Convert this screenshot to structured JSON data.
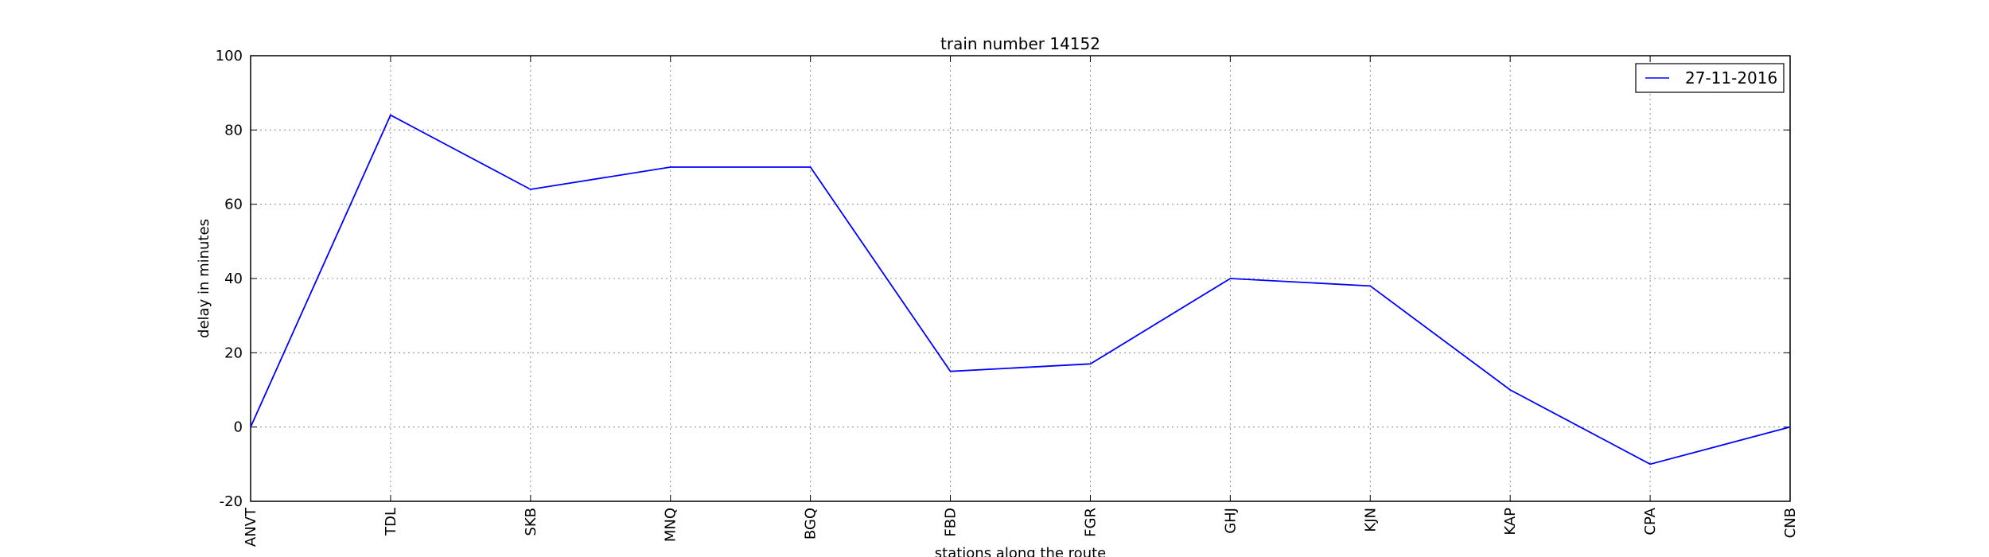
{
  "chart_data": {
    "type": "line",
    "title": "train number 14152",
    "xlabel": "stations along the route",
    "ylabel": "delay in minutes",
    "categories": [
      "ANVT",
      "TDL",
      "SKB",
      "MNQ",
      "BGQ",
      "FBD",
      "FGR",
      "GHJ",
      "KJN",
      "KAP",
      "CPA",
      "CNB"
    ],
    "series": [
      {
        "name": "27-11-2016",
        "values": [
          0,
          84,
          64,
          70,
          70,
          15,
          17,
          40,
          38,
          10,
          -10,
          0
        ],
        "color": "#0000ff"
      }
    ],
    "ylim": [
      -20,
      100
    ],
    "yticks": [
      -20,
      0,
      20,
      40,
      60,
      80,
      100
    ],
    "grid": true,
    "legend_position": "top-right"
  }
}
